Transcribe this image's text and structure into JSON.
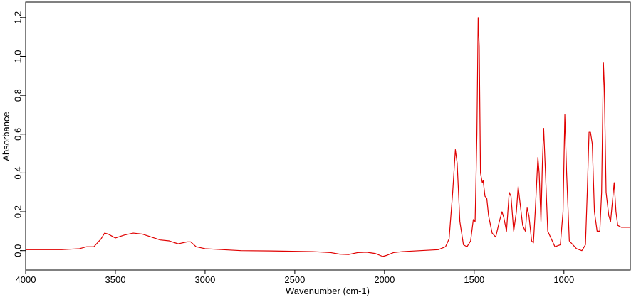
{
  "chart_data": {
    "type": "line",
    "x_label": "Wavenumber (cm-1)",
    "y_label": "Absorbance",
    "color": "#e00000",
    "xlim": [
      4000,
      630
    ],
    "ylim": [
      -0.1,
      1.28
    ],
    "xticks": [
      4000,
      3500,
      3000,
      2500,
      2000,
      1500,
      1000
    ],
    "yticks": [
      {
        "value": 0,
        "label": "0,0"
      },
      {
        "value": 0.2,
        "label": "0,2"
      },
      {
        "value": 0.4,
        "label": "0,4"
      },
      {
        "value": 0.6,
        "label": "0,6"
      },
      {
        "value": 0.8,
        "label": "0,8"
      },
      {
        "value": 1.0,
        "label": "1,0"
      },
      {
        "value": 1.2,
        "label": "1,2"
      }
    ],
    "x": [
      4000,
      3800,
      3700,
      3660,
      3620,
      3580,
      3560,
      3540,
      3500,
      3450,
      3400,
      3350,
      3300,
      3250,
      3200,
      3150,
      3100,
      3080,
      3050,
      3000,
      2900,
      2800,
      2600,
      2400,
      2300,
      2250,
      2200,
      2150,
      2100,
      2050,
      2010,
      1990,
      1950,
      1900,
      1800,
      1700,
      1660,
      1640,
      1620,
      1605,
      1595,
      1580,
      1560,
      1540,
      1520,
      1505,
      1495,
      1485,
      1478,
      1472,
      1465,
      1455,
      1450,
      1440,
      1430,
      1420,
      1400,
      1380,
      1360,
      1345,
      1335,
      1320,
      1305,
      1295,
      1280,
      1265,
      1255,
      1245,
      1230,
      1215,
      1205,
      1195,
      1180,
      1170,
      1160,
      1145,
      1138,
      1128,
      1120,
      1113,
      1105,
      1090,
      1050,
      1020,
      1005,
      995,
      985,
      970,
      930,
      900,
      880,
      870,
      860,
      852,
      842,
      830,
      815,
      800,
      790,
      780,
      775,
      765,
      750,
      740,
      725,
      720,
      710,
      700,
      680,
      660,
      630
    ],
    "values": [
      0.005,
      0.005,
      0.01,
      0.02,
      0.02,
      0.06,
      0.09,
      0.085,
      0.065,
      0.08,
      0.09,
      0.085,
      0.07,
      0.055,
      0.05,
      0.035,
      0.045,
      0.045,
      0.02,
      0.01,
      0.005,
      0.0,
      -0.002,
      -0.005,
      -0.01,
      -0.018,
      -0.02,
      -0.01,
      -0.008,
      -0.015,
      -0.03,
      -0.025,
      -0.01,
      -0.005,
      0.0,
      0.005,
      0.02,
      0.06,
      0.3,
      0.52,
      0.45,
      0.15,
      0.03,
      0.02,
      0.05,
      0.16,
      0.15,
      0.6,
      1.2,
      1.05,
      0.4,
      0.35,
      0.36,
      0.28,
      0.27,
      0.18,
      0.09,
      0.07,
      0.15,
      0.2,
      0.17,
      0.1,
      0.3,
      0.28,
      0.1,
      0.2,
      0.33,
      0.25,
      0.13,
      0.1,
      0.22,
      0.18,
      0.05,
      0.04,
      0.2,
      0.48,
      0.4,
      0.15,
      0.45,
      0.63,
      0.45,
      0.1,
      0.02,
      0.03,
      0.2,
      0.7,
      0.4,
      0.05,
      0.01,
      0.0,
      0.03,
      0.3,
      0.61,
      0.61,
      0.55,
      0.2,
      0.1,
      0.1,
      0.3,
      0.97,
      0.85,
      0.3,
      0.18,
      0.15,
      0.3,
      0.35,
      0.2,
      0.13,
      0.12,
      0.12,
      0.12
    ]
  }
}
